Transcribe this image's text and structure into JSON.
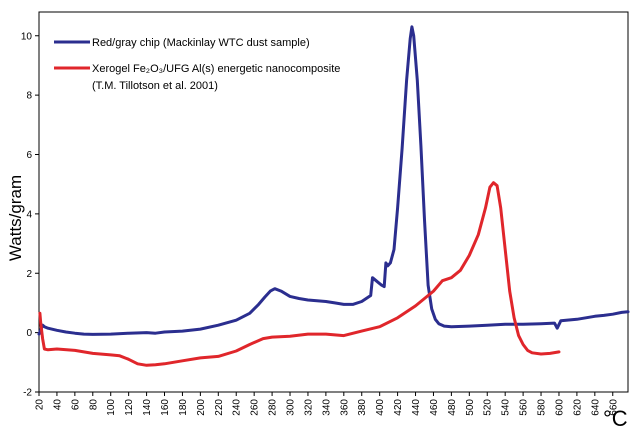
{
  "chart_data": {
    "type": "line",
    "ylabel": "Watts/gram",
    "xunit": "°C",
    "xlim": [
      20,
      677
    ],
    "ylim": [
      -2,
      10.8
    ],
    "yticks": [
      -2,
      0,
      2,
      4,
      6,
      8,
      10
    ],
    "xticks": [
      20,
      40,
      60,
      80,
      100,
      120,
      140,
      160,
      180,
      200,
      220,
      240,
      260,
      280,
      300,
      320,
      340,
      360,
      380,
      400,
      420,
      440,
      460,
      480,
      500,
      520,
      540,
      560,
      580,
      600,
      620,
      640,
      660
    ],
    "grid": false,
    "legend_position": "top-left",
    "series": [
      {
        "name": "Red/gray chip (Mackinlay WTC dust sample)",
        "color": "#2b2e8f",
        "points": [
          [
            20,
            -0.05
          ],
          [
            22,
            0.1
          ],
          [
            24,
            0.25
          ],
          [
            26,
            0.2
          ],
          [
            30,
            0.15
          ],
          [
            40,
            0.08
          ],
          [
            50,
            0.02
          ],
          [
            60,
            -0.02
          ],
          [
            70,
            -0.05
          ],
          [
            80,
            -0.06
          ],
          [
            100,
            -0.05
          ],
          [
            120,
            -0.02
          ],
          [
            140,
            0.0
          ],
          [
            150,
            -0.02
          ],
          [
            160,
            0.02
          ],
          [
            180,
            0.05
          ],
          [
            200,
            0.12
          ],
          [
            220,
            0.25
          ],
          [
            240,
            0.42
          ],
          [
            255,
            0.65
          ],
          [
            265,
            0.95
          ],
          [
            272,
            1.2
          ],
          [
            278,
            1.4
          ],
          [
            283,
            1.48
          ],
          [
            290,
            1.4
          ],
          [
            300,
            1.22
          ],
          [
            310,
            1.15
          ],
          [
            320,
            1.1
          ],
          [
            340,
            1.05
          ],
          [
            350,
            1.0
          ],
          [
            360,
            0.95
          ],
          [
            370,
            0.95
          ],
          [
            380,
            1.05
          ],
          [
            390,
            1.25
          ],
          [
            392,
            1.85
          ],
          [
            398,
            1.7
          ],
          [
            402,
            1.6
          ],
          [
            405,
            1.55
          ],
          [
            407,
            2.35
          ],
          [
            409,
            2.25
          ],
          [
            412,
            2.35
          ],
          [
            416,
            2.8
          ],
          [
            420,
            4.2
          ],
          [
            425,
            6.2
          ],
          [
            430,
            8.5
          ],
          [
            434,
            9.9
          ],
          [
            436,
            10.3
          ],
          [
            438,
            10.0
          ],
          [
            442,
            8.5
          ],
          [
            446,
            6.3
          ],
          [
            450,
            3.8
          ],
          [
            454,
            1.6
          ],
          [
            458,
            0.8
          ],
          [
            462,
            0.45
          ],
          [
            466,
            0.3
          ],
          [
            472,
            0.22
          ],
          [
            480,
            0.2
          ],
          [
            500,
            0.22
          ],
          [
            520,
            0.25
          ],
          [
            540,
            0.28
          ],
          [
            560,
            0.28
          ],
          [
            580,
            0.3
          ],
          [
            595,
            0.32
          ],
          [
            598,
            0.15
          ],
          [
            602,
            0.4
          ],
          [
            620,
            0.45
          ],
          [
            630,
            0.5
          ],
          [
            640,
            0.55
          ],
          [
            650,
            0.58
          ],
          [
            660,
            0.62
          ],
          [
            670,
            0.68
          ],
          [
            677,
            0.7
          ]
        ]
      },
      {
        "name_lines": [
          "Xerogel Fe₂O₃/UFG Al(s) energetic nanocomposite",
          "(T.M. Tillotson et al. 2001)"
        ],
        "color": "#e0262b",
        "points": [
          [
            21,
            0.65
          ],
          [
            22,
            0.3
          ],
          [
            24,
            -0.2
          ],
          [
            26,
            -0.55
          ],
          [
            30,
            -0.58
          ],
          [
            40,
            -0.55
          ],
          [
            60,
            -0.6
          ],
          [
            80,
            -0.7
          ],
          [
            100,
            -0.75
          ],
          [
            110,
            -0.78
          ],
          [
            120,
            -0.9
          ],
          [
            130,
            -1.05
          ],
          [
            140,
            -1.1
          ],
          [
            150,
            -1.08
          ],
          [
            160,
            -1.05
          ],
          [
            180,
            -0.95
          ],
          [
            200,
            -0.85
          ],
          [
            220,
            -0.8
          ],
          [
            240,
            -0.62
          ],
          [
            255,
            -0.4
          ],
          [
            270,
            -0.2
          ],
          [
            280,
            -0.15
          ],
          [
            300,
            -0.12
          ],
          [
            320,
            -0.05
          ],
          [
            340,
            -0.05
          ],
          [
            360,
            -0.1
          ],
          [
            380,
            0.05
          ],
          [
            400,
            0.2
          ],
          [
            420,
            0.5
          ],
          [
            440,
            0.9
          ],
          [
            460,
            1.4
          ],
          [
            470,
            1.75
          ],
          [
            480,
            1.85
          ],
          [
            490,
            2.1
          ],
          [
            500,
            2.6
          ],
          [
            510,
            3.3
          ],
          [
            518,
            4.2
          ],
          [
            523,
            4.9
          ],
          [
            527,
            5.05
          ],
          [
            531,
            4.95
          ],
          [
            535,
            4.2
          ],
          [
            540,
            2.8
          ],
          [
            545,
            1.4
          ],
          [
            550,
            0.5
          ],
          [
            555,
            -0.1
          ],
          [
            560,
            -0.4
          ],
          [
            565,
            -0.6
          ],
          [
            570,
            -0.68
          ],
          [
            580,
            -0.72
          ],
          [
            590,
            -0.7
          ],
          [
            600,
            -0.65
          ]
        ]
      }
    ]
  }
}
